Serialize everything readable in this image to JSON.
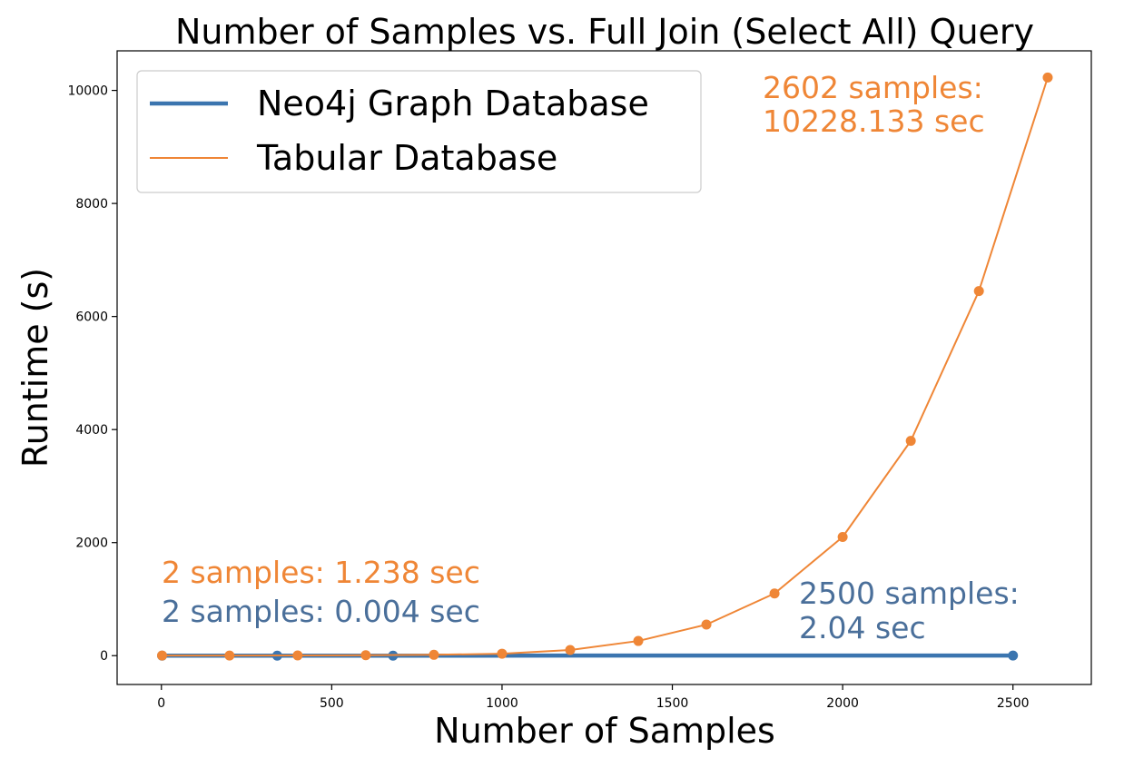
{
  "chart_data": {
    "type": "line",
    "title": "Number of Samples vs. Full Join (Select All) Query",
    "xlabel": "Number of Samples",
    "ylabel": "Runtime (s)",
    "xlim": [
      -130,
      2730
    ],
    "ylim": [
      -510,
      10700
    ],
    "xticks": [
      0,
      500,
      1000,
      1500,
      2000,
      2500
    ],
    "yticks": [
      0,
      2000,
      4000,
      6000,
      8000,
      10000
    ],
    "grid": false,
    "legend_position": "top-left",
    "series": [
      {
        "name": "Neo4j Graph Database",
        "color": "#3b75af",
        "x": [
          2,
          340,
          680,
          2500
        ],
        "y": [
          0.004,
          0.3,
          0.6,
          2.04
        ]
      },
      {
        "name": "Tabular Database",
        "color": "#ef8636",
        "x": [
          2,
          200,
          400,
          600,
          800,
          1000,
          1200,
          1400,
          1600,
          1800,
          2000,
          2200,
          2400,
          2602
        ],
        "y": [
          1.238,
          2,
          4,
          8,
          15,
          35,
          100,
          260,
          550,
          1100,
          2100,
          3800,
          6450,
          10228.133
        ]
      }
    ],
    "annotations": [
      {
        "lines": [
          "2602 samples:",
          "10228.133 sec"
        ],
        "color": "#ef8636"
      },
      {
        "lines": [
          "2 samples: 1.238 sec"
        ],
        "color": "#ef8636"
      },
      {
        "lines": [
          "2 samples: 0.004 sec"
        ],
        "color": "#4a6f9a"
      },
      {
        "lines": [
          "2500 samples:",
          "2.04 sec"
        ],
        "color": "#4a6f9a"
      }
    ]
  }
}
